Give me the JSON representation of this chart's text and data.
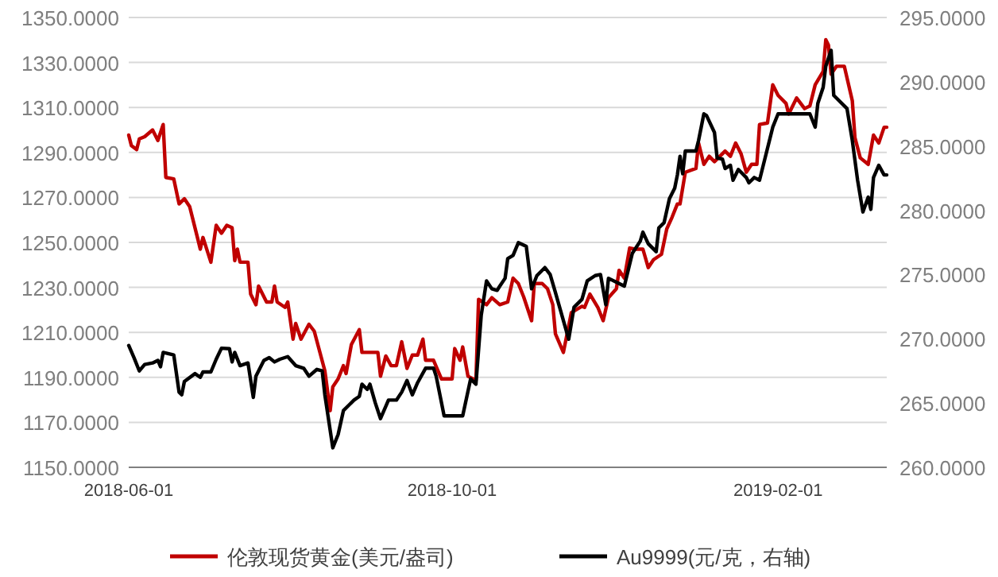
{
  "chart_data": {
    "type": "line",
    "xlim": [
      "2018-06-01",
      "2019-03-14"
    ],
    "xticks": [
      "2018-06-01",
      "2018-10-01",
      "2019-02-01"
    ],
    "ylim": [
      1150,
      1350
    ],
    "yticks": [
      {
        "value": 1150,
        "label": "1150.0000"
      },
      {
        "value": 1170,
        "label": "1170.0000"
      },
      {
        "value": 1190,
        "label": "1190.0000"
      },
      {
        "value": 1210,
        "label": "1210.0000"
      },
      {
        "value": 1230,
        "label": "1230.0000"
      },
      {
        "value": 1250,
        "label": "1250.0000"
      },
      {
        "value": 1270,
        "label": "1270.0000"
      },
      {
        "value": 1290,
        "label": "1290.0000"
      },
      {
        "value": 1310,
        "label": "1310.0000"
      },
      {
        "value": 1330,
        "label": "1330.0000"
      },
      {
        "value": 1350,
        "label": "1350.0000"
      }
    ],
    "y2lim": [
      260,
      295
    ],
    "y2ticks": [
      {
        "value": 260,
        "label": "260.0000"
      },
      {
        "value": 265,
        "label": "265.0000"
      },
      {
        "value": 270,
        "label": "270.0000"
      },
      {
        "value": 275,
        "label": "275.0000"
      },
      {
        "value": 280,
        "label": "280.0000"
      },
      {
        "value": 285,
        "label": "285.0000"
      },
      {
        "value": 290,
        "label": "290.0000"
      },
      {
        "value": 295,
        "label": "295.0000"
      }
    ],
    "grid": "y",
    "legend": "bottom",
    "line_style": "solid",
    "series": [
      {
        "name": "伦敦现货黄金(美元/盎司)",
        "color": "#c00000",
        "x": [
          "2018-06-01",
          "2018-06-02",
          "2018-06-04",
          "2018-06-05",
          "2018-06-07",
          "2018-06-10",
          "2018-06-12",
          "2018-06-14",
          "2018-06-15",
          "2018-06-18",
          "2018-06-20",
          "2018-06-22",
          "2018-06-24",
          "2018-06-27",
          "2018-06-28",
          "2018-06-29",
          "2018-07-02",
          "2018-07-04",
          "2018-07-06",
          "2018-07-08",
          "2018-07-10",
          "2018-07-11",
          "2018-07-12",
          "2018-07-13",
          "2018-07-16",
          "2018-07-17",
          "2018-07-19",
          "2018-07-20",
          "2018-07-23",
          "2018-07-25",
          "2018-07-26",
          "2018-07-27",
          "2018-07-30",
          "2018-07-31",
          "2018-08-02",
          "2018-08-03",
          "2018-08-05",
          "2018-08-08",
          "2018-08-10",
          "2018-08-14",
          "2018-08-16",
          "2018-08-17",
          "2018-08-19",
          "2018-08-21",
          "2018-08-22",
          "2018-08-24",
          "2018-08-27",
          "2018-08-28",
          "2018-08-30",
          "2018-09-03",
          "2018-09-04",
          "2018-09-06",
          "2018-09-08",
          "2018-09-10",
          "2018-09-12",
          "2018-09-14",
          "2018-09-16",
          "2018-09-18",
          "2018-09-20",
          "2018-09-21",
          "2018-09-24",
          "2018-09-27",
          "2018-09-29",
          "2018-10-01",
          "2018-10-02",
          "2018-10-04",
          "2018-10-05",
          "2018-10-07",
          "2018-10-10",
          "2018-10-11",
          "2018-10-14",
          "2018-10-16",
          "2018-10-19",
          "2018-10-22",
          "2018-10-24",
          "2018-10-26",
          "2018-10-28",
          "2018-10-31",
          "2018-11-01",
          "2018-11-04",
          "2018-11-06",
          "2018-11-08",
          "2018-11-09",
          "2018-11-12",
          "2018-11-15",
          "2018-11-19",
          "2018-11-20",
          "2018-11-22",
          "2018-11-25",
          "2018-11-27",
          "2018-11-29",
          "2018-12-02",
          "2018-12-03",
          "2018-12-05",
          "2018-12-07",
          "2018-12-09",
          "2018-12-12",
          "2018-12-14",
          "2018-12-16",
          "2018-12-19",
          "2018-12-21",
          "2018-12-23",
          "2018-12-25",
          "2018-12-26",
          "2018-12-28",
          "2019-01-01",
          "2019-01-02",
          "2019-01-04",
          "2019-01-06",
          "2019-01-08",
          "2019-01-12",
          "2019-01-14",
          "2019-01-16",
          "2019-01-18",
          "2019-01-20",
          "2019-01-22",
          "2019-01-24",
          "2019-01-25",
          "2019-01-28",
          "2019-01-30",
          "2019-02-01",
          "2019-02-04",
          "2019-02-05",
          "2019-02-08",
          "2019-02-11",
          "2019-02-13",
          "2019-02-15",
          "2019-02-18",
          "2019-02-19",
          "2019-02-20",
          "2019-02-21",
          "2019-02-23",
          "2019-02-26",
          "2019-03-01",
          "2019-03-02",
          "2019-03-04",
          "2019-03-07",
          "2019-03-09",
          "2019-03-11",
          "2019-03-13",
          "2019-03-14"
        ],
        "values": [
          1297.7,
          1293.0,
          1291.3,
          1296.0,
          1297.0,
          1300.0,
          1295.3,
          1302.4,
          1278.9,
          1278.2,
          1267.1,
          1269.4,
          1265.9,
          1251.8,
          1247.0,
          1252.2,
          1241.2,
          1257.6,
          1254.1,
          1257.6,
          1256.5,
          1241.9,
          1247.0,
          1241.2,
          1241.2,
          1227.0,
          1222.3,
          1230.6,
          1223.5,
          1223.5,
          1230.6,
          1223.5,
          1221.1,
          1223.5,
          1207.0,
          1214.0,
          1207.0,
          1213.6,
          1210.5,
          1192.9,
          1175.2,
          1185.8,
          1189.3,
          1195.2,
          1191.7,
          1204.6,
          1211.2,
          1201.1,
          1201.1,
          1201.1,
          1190.5,
          1199.5,
          1195.2,
          1195.2,
          1205.8,
          1194.0,
          1199.9,
          1199.9,
          1207.0,
          1197.6,
          1197.6,
          1189.3,
          1189.3,
          1189.3,
          1202.8,
          1197.6,
          1203.5,
          1190.5,
          1188.6,
          1224.7,
          1222.3,
          1225.4,
          1222.3,
          1223.5,
          1234.1,
          1231.7,
          1225.8,
          1215.2,
          1231.7,
          1231.7,
          1229.4,
          1222.3,
          1209.3,
          1201.1,
          1218.8,
          1221.6,
          1221.1,
          1227.0,
          1221.1,
          1215.2,
          1225.4,
          1229.4,
          1237.6,
          1234.1,
          1247.5,
          1247.0,
          1247.0,
          1238.8,
          1242.3,
          1244.7,
          1256.0,
          1261.2,
          1267.1,
          1267.1,
          1281.2,
          1282.9,
          1294.2,
          1284.7,
          1288.3,
          1285.9,
          1290.6,
          1288.3,
          1294.2,
          1289.5,
          1281.2,
          1284.7,
          1284.7,
          1302.4,
          1303.1,
          1320.1,
          1315.4,
          1311.8,
          1307.1,
          1314.2,
          1309.5,
          1310.7,
          1320.1,
          1326.0,
          1340.1,
          1337.7,
          1324.8,
          1328.3,
          1328.3,
          1313.0,
          1296.5,
          1287.6,
          1284.7,
          1297.7,
          1294.2,
          1301.2,
          1301.2
        ]
      },
      {
        "name": "Au9999(元/克，右轴)",
        "color": "#000000",
        "axis": "y2",
        "x": [
          "2018-06-01",
          "2018-06-03",
          "2018-06-05",
          "2018-06-07",
          "2018-06-10",
          "2018-06-12",
          "2018-06-13",
          "2018-06-14",
          "2018-06-18",
          "2018-06-20",
          "2018-06-21",
          "2018-06-22",
          "2018-06-26",
          "2018-06-28",
          "2018-06-29",
          "2018-07-02",
          "2018-07-04",
          "2018-07-06",
          "2018-07-09",
          "2018-07-10",
          "2018-07-11",
          "2018-07-13",
          "2018-07-16",
          "2018-07-18",
          "2018-07-19",
          "2018-07-22",
          "2018-07-24",
          "2018-07-26",
          "2018-07-28",
          "2018-07-31",
          "2018-08-03",
          "2018-08-06",
          "2018-08-08",
          "2018-08-11",
          "2018-08-13",
          "2018-08-14",
          "2018-08-17",
          "2018-08-19",
          "2018-08-21",
          "2018-08-23",
          "2018-08-25",
          "2018-08-27",
          "2018-08-28",
          "2018-08-30",
          "2018-08-31",
          "2018-09-02",
          "2018-09-04",
          "2018-09-07",
          "2018-09-10",
          "2018-09-12",
          "2018-09-14",
          "2018-09-16",
          "2018-09-18",
          "2018-09-21",
          "2018-09-24",
          "2018-09-25",
          "2018-09-28",
          "2018-10-05",
          "2018-10-08",
          "2018-10-10",
          "2018-10-12",
          "2018-10-14",
          "2018-10-16",
          "2018-10-18",
          "2018-10-19",
          "2018-10-21",
          "2018-10-22",
          "2018-10-24",
          "2018-10-26",
          "2018-10-29",
          "2018-10-31",
          "2018-11-02",
          "2018-11-05",
          "2018-11-07",
          "2018-11-09",
          "2018-11-14",
          "2018-11-16",
          "2018-11-19",
          "2018-11-21",
          "2018-11-24",
          "2018-11-26",
          "2018-11-28",
          "2018-11-29",
          "2018-12-03",
          "2018-12-05",
          "2018-12-08",
          "2018-12-11",
          "2018-12-12",
          "2018-12-14",
          "2018-12-17",
          "2018-12-18",
          "2018-12-20",
          "2018-12-22",
          "2018-12-24",
          "2018-12-25",
          "2018-12-26",
          "2018-12-27",
          "2018-12-28",
          "2019-01-01",
          "2019-01-02",
          "2019-01-04",
          "2019-01-05",
          "2019-01-08",
          "2019-01-09",
          "2019-01-11",
          "2019-01-12",
          "2019-01-14",
          "2019-01-15",
          "2019-01-17",
          "2019-01-20",
          "2019-01-21",
          "2019-01-23",
          "2019-01-25",
          "2019-01-27",
          "2019-01-30",
          "2019-02-01",
          "2019-02-13",
          "2019-02-15",
          "2019-02-16",
          "2019-02-18",
          "2019-02-19",
          "2019-02-21",
          "2019-02-22",
          "2019-02-27",
          "2019-03-01",
          "2019-03-03",
          "2019-03-05",
          "2019-03-07",
          "2019-03-08",
          "2019-03-09",
          "2019-03-11",
          "2019-03-13",
          "2019-03-14"
        ],
        "values": [
          269.48,
          268.53,
          267.5,
          268.0,
          268.12,
          268.32,
          267.83,
          268.94,
          268.74,
          265.85,
          265.64,
          266.68,
          267.29,
          267.0,
          267.42,
          267.42,
          268.41,
          269.27,
          269.23,
          268.2,
          268.94,
          267.91,
          268.12,
          265.44,
          267.09,
          268.32,
          268.53,
          268.2,
          268.41,
          268.61,
          267.91,
          267.71,
          267.09,
          267.62,
          267.5,
          265.64,
          261.52,
          262.55,
          264.41,
          264.82,
          265.23,
          265.52,
          266.47,
          266.06,
          266.47,
          265.03,
          263.79,
          265.23,
          265.23,
          265.85,
          266.76,
          265.64,
          266.59,
          267.71,
          267.71,
          267.09,
          264.0,
          264.0,
          266.88,
          266.47,
          271.83,
          274.51,
          273.89,
          273.77,
          274.1,
          274.71,
          276.24,
          276.49,
          277.48,
          277.19,
          273.89,
          274.92,
          275.54,
          275.0,
          273.6,
          269.97,
          272.45,
          273.07,
          274.51,
          274.92,
          275.0,
          272.65,
          274.71,
          274.3,
          274.1,
          276.65,
          277.6,
          278.3,
          277.4,
          276.78,
          278.63,
          279.04,
          280.9,
          281.72,
          282.75,
          284.2,
          282.84,
          284.61,
          284.61,
          285.43,
          287.5,
          287.37,
          286.05,
          284.07,
          283.99,
          283.25,
          283.5,
          282.34,
          283.17,
          282.55,
          282.14,
          282.55,
          282.34,
          283.99,
          286.47,
          287.5,
          287.5,
          286.47,
          288.32,
          289.56,
          291.21,
          292.44,
          288.94,
          287.91,
          285.43,
          282.34,
          279.87,
          281.02,
          280.07,
          282.55,
          283.5,
          282.75,
          282.75
        ]
      }
    ]
  }
}
